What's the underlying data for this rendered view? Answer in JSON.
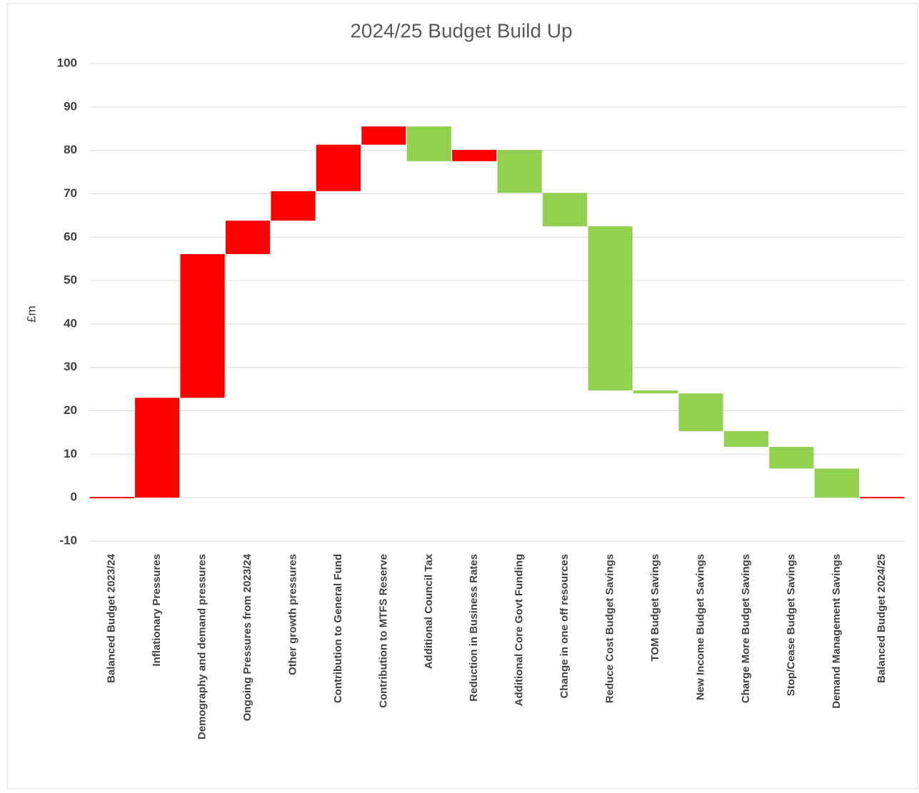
{
  "chart_data": {
    "type": "waterfall",
    "title": "2024/25 Budget Build Up",
    "y_label": "£m",
    "categories": [
      "Balanced Budget 2023/24",
      "Inflationary Pressures",
      "Demography and demand pressures",
      "Ongoing Pressures from 2023/24",
      "Other growth pressures",
      "Contribution to General Fund",
      "Contribution to MTFS Reserve",
      "Additional Council Tax",
      "Reduction in Business Rates",
      "Additional Core Govt Funding",
      "Change in one off resources",
      "Reduce Cost Budget Savings",
      "TOM Budget Savings",
      "New Income Budget Savings",
      "Charge More Budget Savings",
      "Stop/Cease Budget Savings",
      "Demand Management Savings",
      "Balanced Budget 2024/25"
    ],
    "values": [
      0,
      23.0,
      33.1,
      7.7,
      6.8,
      10.7,
      4.2,
      -8.0,
      2.6,
      -9.9,
      -7.7,
      -37.8,
      -0.7,
      -8.7,
      -3.6,
      -5.0,
      -6.7,
      0
    ],
    "increase_color": "#ff0000",
    "decrease_color": "#92d050",
    "ylim": [
      -10,
      100
    ],
    "yticks": [
      -10,
      0,
      10,
      20,
      30,
      40,
      50,
      60,
      70,
      80,
      90,
      100
    ],
    "grid": true
  }
}
